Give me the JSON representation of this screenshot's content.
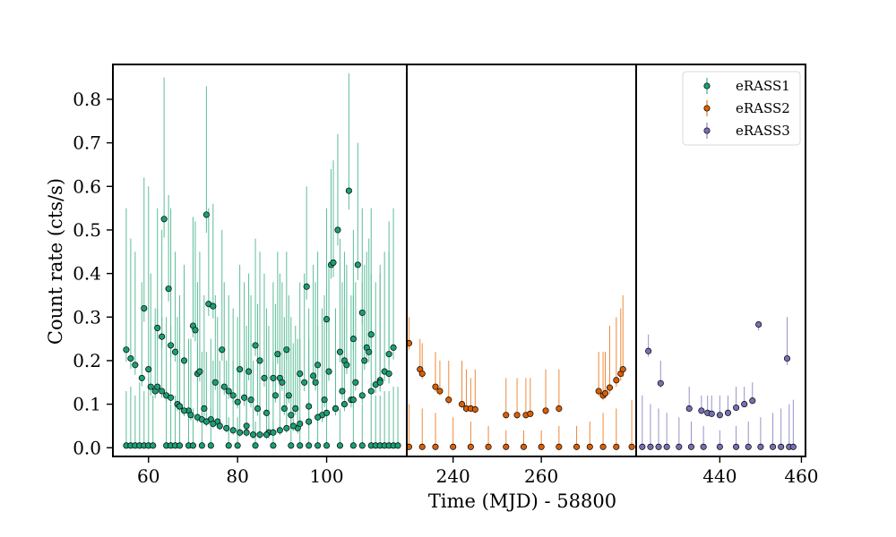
{
  "chart_data": {
    "type": "scatter",
    "xlabel": "Time (MJD) - 58800",
    "ylabel": "Count rate (cts/s)",
    "ylim": [
      -0.02,
      0.88
    ],
    "yticks": [
      0.0,
      0.1,
      0.2,
      0.3,
      0.4,
      0.5,
      0.6,
      0.7,
      0.8
    ],
    "ytick_labels": [
      "0.0",
      "0.1",
      "0.2",
      "0.3",
      "0.4",
      "0.5",
      "0.6",
      "0.7",
      "0.8"
    ],
    "grid": false,
    "legend_position": "top-right",
    "panels": [
      {
        "series": "eRASS1",
        "color": "#1b9e77",
        "errcolor": "#5cbd98",
        "xlim": [
          52,
          118
        ],
        "xticks": [
          60,
          80,
          100
        ],
        "xtick_labels": [
          "60",
          "80",
          "100"
        ],
        "points": [
          [
            55,
            0.225,
            0.55
          ],
          [
            56,
            0.205,
            0.48
          ],
          [
            57,
            0.19,
            0.45
          ],
          [
            58.5,
            0.16,
            0.38
          ],
          [
            59,
            0.32,
            0.62
          ],
          [
            60,
            0.18,
            0.6
          ],
          [
            60.5,
            0.14,
            0.4
          ],
          [
            61.5,
            0.13,
            0.32
          ],
          [
            62,
            0.275,
            0.55
          ],
          [
            63,
            0.255,
            0.5
          ],
          [
            63.5,
            0.525,
            0.85
          ],
          [
            64.5,
            0.365,
            0.58
          ],
          [
            65,
            0.235,
            0.55
          ],
          [
            66,
            0.22,
            0.45
          ],
          [
            66.5,
            0.1,
            0.3
          ],
          [
            67,
            0.095,
            0.35
          ],
          [
            68,
            0.2,
            0.42
          ],
          [
            69,
            0.085,
            0.25
          ],
          [
            70,
            0.28,
            0.53
          ],
          [
            70.5,
            0.27,
            0.52
          ],
          [
            71,
            0.17,
            0.38
          ],
          [
            71.5,
            0.175,
            0.45
          ],
          [
            72.5,
            0.09,
            0.35
          ],
          [
            73,
            0.535,
            0.83
          ],
          [
            73.5,
            0.33,
            0.55
          ],
          [
            74,
            0.065,
            0.25
          ],
          [
            74.5,
            0.325,
            0.56
          ],
          [
            75,
            0.15,
            0.35
          ],
          [
            75.5,
            0.06,
            0.3
          ],
          [
            76.5,
            0.225,
            0.5
          ],
          [
            77,
            0.14,
            0.38
          ],
          [
            78,
            0.13,
            0.35
          ],
          [
            79,
            0.12,
            0.32
          ],
          [
            80,
            0.105,
            0.3
          ],
          [
            80.5,
            0.18,
            0.42
          ],
          [
            81.5,
            0.115,
            0.38
          ],
          [
            82,
            0.05,
            0.28
          ],
          [
            82.5,
            0.175,
            0.4
          ],
          [
            83,
            0.11,
            0.35
          ],
          [
            84,
            0.235,
            0.48
          ],
          [
            84.5,
            0.09,
            0.33
          ],
          [
            85,
            0.2,
            0.45
          ],
          [
            86,
            0.16,
            0.4
          ],
          [
            86.5,
            0.08,
            0.32
          ],
          [
            87,
            0.035,
            0.28
          ],
          [
            88,
            0.16,
            0.38
          ],
          [
            88.5,
            0.12,
            0.33
          ],
          [
            89,
            0.215,
            0.45
          ],
          [
            89.5,
            0.16,
            0.4
          ],
          [
            90,
            0.15,
            0.38
          ],
          [
            90.5,
            0.09,
            0.3
          ],
          [
            91,
            0.225,
            0.45
          ],
          [
            91.5,
            0.12,
            0.35
          ],
          [
            92,
            0.075,
            0.3
          ],
          [
            93,
            0.09,
            0.28
          ],
          [
            93.5,
            0.045,
            0.25
          ],
          [
            94,
            0.17,
            0.38
          ],
          [
            95,
            0.15,
            0.4
          ],
          [
            95.5,
            0.37,
            0.6
          ],
          [
            96,
            0.095,
            0.32
          ],
          [
            97,
            0.165,
            0.42
          ],
          [
            97.5,
            0.15,
            0.38
          ],
          [
            98,
            0.19,
            0.45
          ],
          [
            99,
            0.075,
            0.32
          ],
          [
            99.5,
            0.11,
            0.35
          ],
          [
            100,
            0.295,
            0.55
          ],
          [
            100.5,
            0.175,
            0.42
          ],
          [
            101,
            0.42,
            0.64
          ],
          [
            101.5,
            0.425,
            0.66
          ],
          [
            102,
            0.09,
            0.32
          ],
          [
            102.5,
            0.5,
            0.72
          ],
          [
            103,
            0.22,
            0.48
          ],
          [
            103.5,
            0.13,
            0.38
          ],
          [
            104,
            0.2,
            0.45
          ],
          [
            104.5,
            0.19,
            0.42
          ],
          [
            105,
            0.59,
            0.86
          ],
          [
            105.5,
            0.11,
            0.35
          ],
          [
            106,
            0.25,
            0.5
          ],
          [
            106.5,
            0.15,
            0.38
          ],
          [
            107,
            0.42,
            0.7
          ],
          [
            108,
            0.31,
            0.55
          ],
          [
            108.5,
            0.2,
            0.42
          ],
          [
            109,
            0.23,
            0.45
          ],
          [
            109.5,
            0.22,
            0.48
          ],
          [
            110,
            0.26,
            0.55
          ],
          [
            111,
            0.145,
            0.38
          ],
          [
            112,
            0.155,
            0.4
          ],
          [
            113,
            0.175,
            0.45
          ],
          [
            114,
            0.215,
            0.52
          ],
          [
            115,
            0.23,
            0.55
          ],
          [
            62,
            0.14,
            0.32
          ],
          [
            63,
            0.13,
            0.3
          ],
          [
            64,
            0.12,
            0.3
          ],
          [
            65,
            0.115,
            0.28
          ],
          [
            67,
            0.095,
            0.28
          ],
          [
            68,
            0.085,
            0.25
          ],
          [
            69.5,
            0.075,
            0.25
          ],
          [
            71,
            0.07,
            0.24
          ],
          [
            72,
            0.065,
            0.22
          ],
          [
            73,
            0.06,
            0.22
          ],
          [
            74.5,
            0.055,
            0.2
          ],
          [
            76,
            0.05,
            0.2
          ],
          [
            77.5,
            0.045,
            0.2
          ],
          [
            79,
            0.04,
            0.2
          ],
          [
            80.5,
            0.035,
            0.2
          ],
          [
            82,
            0.035,
            0.2
          ],
          [
            83.5,
            0.03,
            0.2
          ],
          [
            85,
            0.03,
            0.2
          ],
          [
            86.5,
            0.03,
            0.2
          ],
          [
            88,
            0.035,
            0.2
          ],
          [
            89.5,
            0.04,
            0.22
          ],
          [
            91,
            0.045,
            0.22
          ],
          [
            92.5,
            0.05,
            0.24
          ],
          [
            94,
            0.055,
            0.25
          ],
          [
            96,
            0.06,
            0.25
          ],
          [
            98,
            0.07,
            0.28
          ],
          [
            100,
            0.08,
            0.3
          ],
          [
            102,
            0.09,
            0.3
          ],
          [
            104,
            0.1,
            0.32
          ],
          [
            106,
            0.11,
            0.35
          ],
          [
            108,
            0.12,
            0.38
          ],
          [
            110,
            0.13,
            0.4
          ],
          [
            112,
            0.15,
            0.42
          ],
          [
            114,
            0.17,
            0.45
          ],
          [
            55,
            0.005,
            0.13
          ],
          [
            56,
            0.005,
            0.14
          ],
          [
            57,
            0.005,
            0.12
          ],
          [
            58,
            0.005,
            0.15
          ],
          [
            59,
            0.005,
            0.13
          ],
          [
            60,
            0.005,
            0.16
          ],
          [
            61,
            0.005,
            0.12
          ],
          [
            64,
            0.005,
            0.13
          ],
          [
            65,
            0.005,
            0.1
          ],
          [
            66,
            0.005,
            0.12
          ],
          [
            67,
            0.005,
            0.1
          ],
          [
            69,
            0.005,
            0.1
          ],
          [
            70,
            0.005,
            0.09
          ],
          [
            72,
            0.005,
            0.1
          ],
          [
            74,
            0.005,
            0.09
          ],
          [
            78,
            0.005,
            0.07
          ],
          [
            80,
            0.005,
            0.07
          ],
          [
            84,
            0.005,
            0.06
          ],
          [
            88,
            0.005,
            0.06
          ],
          [
            92,
            0.005,
            0.07
          ],
          [
            94,
            0.005,
            0.07
          ],
          [
            96,
            0.005,
            0.08
          ],
          [
            98,
            0.005,
            0.08
          ],
          [
            100,
            0.005,
            0.08
          ],
          [
            103,
            0.005,
            0.09
          ],
          [
            106,
            0.005,
            0.1
          ],
          [
            108,
            0.005,
            0.1
          ],
          [
            110,
            0.005,
            0.11
          ],
          [
            111,
            0.005,
            0.12
          ],
          [
            112,
            0.005,
            0.12
          ],
          [
            113,
            0.005,
            0.13
          ],
          [
            114,
            0.005,
            0.13
          ],
          [
            115,
            0.005,
            0.14
          ],
          [
            116,
            0.005,
            0.14
          ]
        ]
      },
      {
        "series": "eRASS2",
        "color": "#d95f02",
        "errcolor": "#ef8a3a",
        "xlim": [
          229.5,
          281.5
        ],
        "xticks": [
          240,
          260
        ],
        "xtick_labels": [
          "240",
          "260"
        ],
        "points": [
          [
            230,
            0.24,
            0.3
          ],
          [
            232.5,
            0.18,
            0.25
          ],
          [
            233,
            0.17,
            0.24
          ],
          [
            236,
            0.14,
            0.22
          ],
          [
            237,
            0.13,
            0.2
          ],
          [
            239,
            0.11,
            0.2
          ],
          [
            242,
            0.1,
            0.2
          ],
          [
            243,
            0.09,
            0.18
          ],
          [
            244,
            0.09,
            0.16
          ],
          [
            245,
            0.088,
            0.18
          ],
          [
            252,
            0.075,
            0.16
          ],
          [
            254.5,
            0.075,
            0.16
          ],
          [
            256.5,
            0.075,
            0.16
          ],
          [
            257.5,
            0.078,
            0.16
          ],
          [
            261,
            0.085,
            0.18
          ],
          [
            264,
            0.09,
            0.18
          ],
          [
            273,
            0.13,
            0.22
          ],
          [
            274,
            0.12,
            0.22
          ],
          [
            274.5,
            0.125,
            0.22
          ],
          [
            275.5,
            0.138,
            0.28
          ],
          [
            277,
            0.155,
            0.3
          ],
          [
            278,
            0.17,
            0.32
          ],
          [
            278.5,
            0.18,
            0.35
          ],
          [
            230,
            0.002,
            0.1
          ],
          [
            233,
            0.002,
            0.09
          ],
          [
            236,
            0.002,
            0.08
          ],
          [
            240,
            0.002,
            0.07
          ],
          [
            244,
            0.002,
            0.06
          ],
          [
            248,
            0.002,
            0.05
          ],
          [
            252,
            0.002,
            0.04
          ],
          [
            256,
            0.002,
            0.04
          ],
          [
            260,
            0.002,
            0.04
          ],
          [
            264,
            0.002,
            0.05
          ],
          [
            268,
            0.002,
            0.05
          ],
          [
            271,
            0.002,
            0.06
          ],
          [
            274,
            0.002,
            0.08
          ],
          [
            277,
            0.002,
            0.09
          ],
          [
            280.5,
            0.002,
            0.11
          ]
        ]
      },
      {
        "series": "eRASS3",
        "color": "#7570b3",
        "errcolor": "#9892c8",
        "xlim": [
          419.5,
          461
        ],
        "xticks": [
          440,
          460
        ],
        "xtick_labels": [
          "440",
          "460"
        ],
        "points": [
          [
            422.5,
            0.222,
            0.26
          ],
          [
            425.5,
            0.148,
            0.2
          ],
          [
            432.5,
            0.09,
            0.14
          ],
          [
            435.5,
            0.085,
            0.12
          ],
          [
            437,
            0.08,
            0.12
          ],
          [
            438,
            0.078,
            0.12
          ],
          [
            440,
            0.075,
            0.12
          ],
          [
            442,
            0.08,
            0.12
          ],
          [
            444,
            0.092,
            0.14
          ],
          [
            446,
            0.1,
            0.14
          ],
          [
            448,
            0.108,
            0.15
          ],
          [
            449.5,
            0.283,
            0.28
          ],
          [
            456.5,
            0.205,
            0.3
          ],
          [
            421,
            0.002,
            0.12
          ],
          [
            423,
            0.002,
            0.1
          ],
          [
            425,
            0.002,
            0.09
          ],
          [
            427,
            0.002,
            0.08
          ],
          [
            430,
            0.002,
            0.07
          ],
          [
            433,
            0.002,
            0.06
          ],
          [
            436,
            0.002,
            0.05
          ],
          [
            440,
            0.002,
            0.04
          ],
          [
            444,
            0.002,
            0.05
          ],
          [
            447,
            0.002,
            0.06
          ],
          [
            450,
            0.002,
            0.07
          ],
          [
            453,
            0.002,
            0.08
          ],
          [
            455,
            0.002,
            0.09
          ],
          [
            457,
            0.002,
            0.1
          ],
          [
            458,
            0.002,
            0.11
          ]
        ]
      }
    ],
    "legend": [
      {
        "label": "eRASS1",
        "color": "#1b9e77"
      },
      {
        "label": "eRASS2",
        "color": "#d95f02"
      },
      {
        "label": "eRASS3",
        "color": "#7570b3"
      }
    ]
  }
}
